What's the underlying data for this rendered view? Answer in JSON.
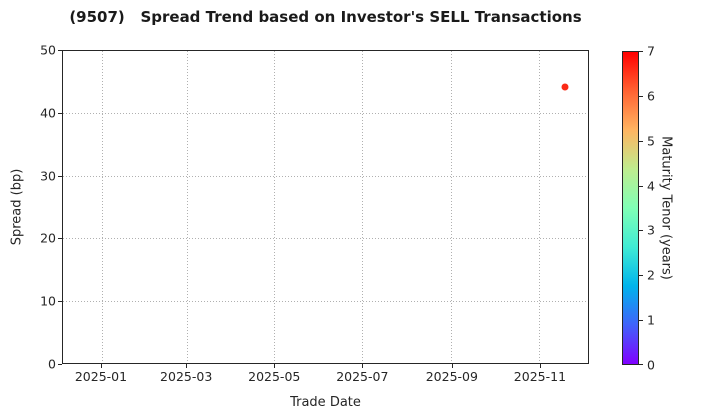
{
  "chart_data": {
    "type": "scatter",
    "title": "(9507)   Spread Trend based on Investor's SELL Transactions",
    "xlabel": "Trade Date",
    "ylabel": "Spread (bp)",
    "xlim_dates": [
      "2024-12-05",
      "2025-12-05"
    ],
    "ylim": [
      0,
      50
    ],
    "x_ticks": [
      {
        "date": "2025-01-01",
        "label": "2025-01"
      },
      {
        "date": "2025-03-01",
        "label": "2025-03"
      },
      {
        "date": "2025-05-01",
        "label": "2025-05"
      },
      {
        "date": "2025-07-01",
        "label": "2025-07"
      },
      {
        "date": "2025-09-01",
        "label": "2025-09"
      },
      {
        "date": "2025-11-01",
        "label": "2025-11"
      }
    ],
    "y_ticks": [
      {
        "value": 0,
        "label": "0"
      },
      {
        "value": 10,
        "label": "10"
      },
      {
        "value": 20,
        "label": "20"
      },
      {
        "value": 30,
        "label": "30"
      },
      {
        "value": 40,
        "label": "40"
      },
      {
        "value": 50,
        "label": "50"
      }
    ],
    "grid_style": "dotted",
    "points": [
      {
        "trade_date": "2025-11-19",
        "spread_bp": 44.2,
        "maturity_tenor_years": 6.6,
        "color": "#fb2a16"
      }
    ],
    "colorbar": {
      "label": "Maturity Tenor (years)",
      "min": 0,
      "max": 7,
      "ticks": [
        {
          "value": 0,
          "label": "0"
        },
        {
          "value": 1,
          "label": "1"
        },
        {
          "value": 2,
          "label": "2"
        },
        {
          "value": 3,
          "label": "3"
        },
        {
          "value": 4,
          "label": "4"
        },
        {
          "value": 5,
          "label": "5"
        },
        {
          "value": 6,
          "label": "6"
        },
        {
          "value": 7,
          "label": "7"
        }
      ],
      "colormap": "rainbow",
      "gradient_stops": [
        {
          "offset": 0.0,
          "color": "#8000ff"
        },
        {
          "offset": 0.125,
          "color": "#4062fa"
        },
        {
          "offset": 0.25,
          "color": "#00b4ec"
        },
        {
          "offset": 0.375,
          "color": "#40ecd4"
        },
        {
          "offset": 0.5,
          "color": "#80ffb5"
        },
        {
          "offset": 0.625,
          "color": "#bfec8e"
        },
        {
          "offset": 0.75,
          "color": "#ffb461"
        },
        {
          "offset": 0.875,
          "color": "#ff6232"
        },
        {
          "offset": 1.0,
          "color": "#ff0000"
        }
      ]
    },
    "colors": {
      "background": "#ffffff",
      "spine": "#262626",
      "grid": "#b0b0b0",
      "text": "#262626",
      "title_text": "#1a1a1a"
    }
  }
}
